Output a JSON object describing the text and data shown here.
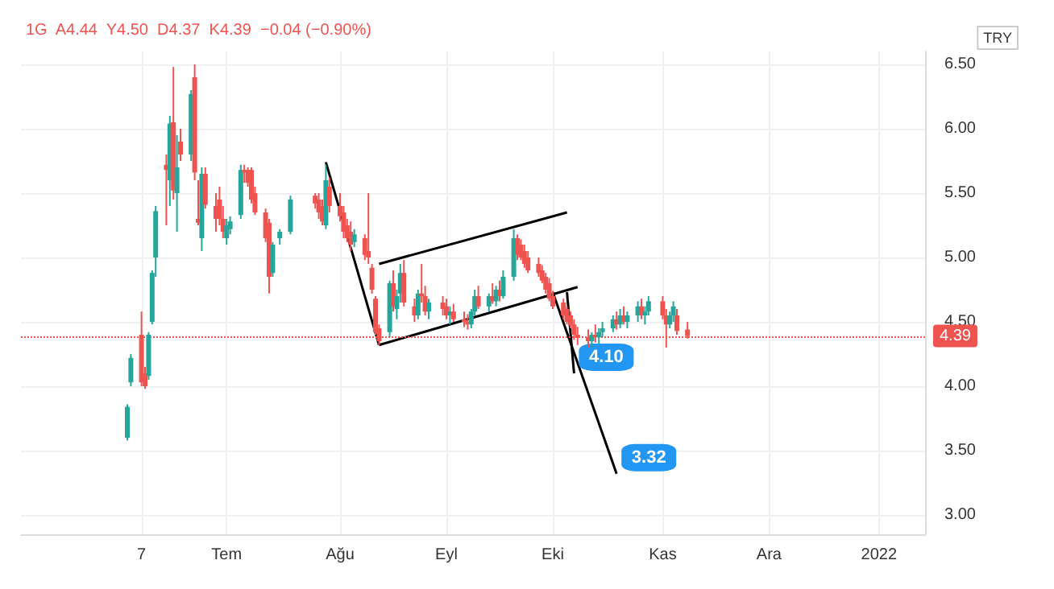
{
  "chart_data": {
    "type": "candlestick",
    "annotations": [
      "1G  A4.44  Y4.50  D4.37  K4.39  −0.04 (−0.90%)",
      "TRY",
      {
        "text": "4.10",
        "x": "2021-10-07",
        "y": 4.1
      },
      {
        "text": "3.32",
        "x": "2021-10-19",
        "y": 3.32
      }
    ],
    "x": [
      "2021-06-03",
      "2021-06-04",
      "2021-06-07",
      "2021-06-08",
      "2021-06-09",
      "2021-06-10",
      "2021-06-11",
      "2021-06-14",
      "2021-06-15",
      "2021-06-16",
      "2021-06-17",
      "2021-06-18",
      "2021-06-21",
      "2021-06-22",
      "2021-06-23",
      "2021-06-24",
      "2021-06-25",
      "2021-06-28",
      "2021-06-29",
      "2021-06-30",
      "2021-07-01",
      "2021-07-02",
      "2021-07-05",
      "2021-07-06",
      "2021-07-07",
      "2021-07-08",
      "2021-07-09",
      "2021-07-12",
      "2021-07-13",
      "2021-07-14",
      "2021-07-16",
      "2021-07-19",
      "2021-07-26",
      "2021-07-27",
      "2021-07-28",
      "2021-07-29",
      "2021-07-30",
      "2021-08-02",
      "2021-08-03",
      "2021-08-04",
      "2021-08-05",
      "2021-08-06",
      "2021-08-09",
      "2021-08-10",
      "2021-08-11",
      "2021-08-12",
      "2021-08-13",
      "2021-08-16",
      "2021-08-17",
      "2021-08-18",
      "2021-08-19",
      "2021-08-20",
      "2021-08-23",
      "2021-08-24",
      "2021-08-25",
      "2021-08-26",
      "2021-08-27",
      "2021-08-31",
      "2021-09-01",
      "2021-09-02",
      "2021-09-03",
      "2021-09-06",
      "2021-09-07",
      "2021-09-08",
      "2021-09-09",
      "2021-09-10",
      "2021-09-13",
      "2021-09-14",
      "2021-09-15",
      "2021-09-16",
      "2021-09-17",
      "2021-09-20",
      "2021-09-21",
      "2021-09-22",
      "2021-09-23",
      "2021-09-24",
      "2021-09-27",
      "2021-09-28",
      "2021-09-29",
      "2021-09-30",
      "2021-10-01",
      "2021-10-04",
      "2021-10-05",
      "2021-10-06",
      "2021-10-07",
      "2021-10-08",
      "2021-10-11",
      "2021-10-12",
      "2021-10-13",
      "2021-10-14",
      "2021-10-15",
      "2021-10-18",
      "2021-10-19",
      "2021-10-20",
      "2021-10-21",
      "2021-10-22",
      "2021-10-25",
      "2021-10-26",
      "2021-10-27",
      "2021-10-28",
      "2021-11-01",
      "2021-11-02",
      "2021-11-03",
      "2021-11-04",
      "2021-11-05",
      "2021-11-08"
    ],
    "ohlc": [
      [
        3.6,
        3.86,
        3.58,
        3.84
      ],
      [
        4.03,
        4.25,
        4.0,
        4.22
      ],
      [
        4.4,
        4.58,
        4.0,
        4.03
      ],
      [
        4.1,
        4.15,
        3.98,
        4.0
      ],
      [
        4.08,
        4.42,
        4.05,
        4.4
      ],
      [
        4.5,
        4.9,
        4.48,
        4.88
      ],
      [
        5.0,
        5.4,
        4.85,
        5.36
      ],
      [
        5.72,
        5.8,
        5.25,
        5.68
      ],
      [
        5.6,
        6.1,
        5.4,
        6.04
      ],
      [
        6.05,
        6.48,
        5.45,
        5.52
      ],
      [
        5.5,
        5.95,
        5.2,
        5.7
      ],
      [
        5.9,
        6.0,
        5.75,
        5.8
      ],
      [
        5.8,
        6.3,
        5.75,
        6.27
      ],
      [
        6.4,
        6.5,
        5.6,
        5.66
      ],
      [
        5.3,
        5.6,
        5.25,
        5.27
      ],
      [
        5.15,
        5.7,
        5.05,
        5.65
      ],
      [
        5.65,
        5.7,
        5.38,
        5.41
      ],
      [
        5.4,
        5.5,
        5.2,
        5.3
      ],
      [
        5.45,
        5.55,
        5.25,
        5.3
      ],
      [
        5.3,
        5.4,
        5.15,
        5.2
      ],
      [
        5.15,
        5.3,
        5.1,
        5.25
      ],
      [
        5.22,
        5.32,
        5.18,
        5.28
      ],
      [
        5.33,
        5.72,
        5.3,
        5.68
      ],
      [
        5.68,
        5.72,
        5.58,
        5.66
      ],
      [
        5.68,
        5.7,
        5.55,
        5.58
      ],
      [
        5.68,
        5.7,
        5.42,
        5.45
      ],
      [
        5.5,
        5.55,
        5.33,
        5.35
      ],
      [
        5.35,
        5.38,
        5.12,
        5.15
      ],
      [
        5.27,
        5.3,
        4.72,
        4.85
      ],
      [
        4.88,
        5.12,
        4.85,
        5.1
      ],
      [
        5.15,
        5.22,
        5.1,
        5.2
      ],
      [
        5.2,
        5.48,
        5.18,
        5.45
      ],
      [
        5.48,
        5.5,
        5.38,
        5.42
      ],
      [
        5.45,
        5.5,
        5.3,
        5.35
      ],
      [
        5.4,
        5.45,
        5.25,
        5.28
      ],
      [
        5.25,
        5.72,
        5.22,
        5.6
      ],
      [
        5.55,
        5.62,
        5.35,
        5.4
      ],
      [
        5.4,
        5.5,
        5.28,
        5.32
      ],
      [
        5.35,
        5.4,
        5.15,
        5.2
      ],
      [
        5.25,
        5.3,
        5.12,
        5.15
      ],
      [
        5.2,
        5.28,
        5.05,
        5.1
      ],
      [
        5.12,
        5.22,
        5.08,
        5.18
      ],
      [
        5.15,
        5.18,
        4.98,
        5.02
      ],
      [
        5.05,
        5.5,
        4.95,
        5.0
      ],
      [
        4.92,
        4.95,
        4.72,
        4.75
      ],
      [
        4.68,
        4.7,
        4.4,
        4.42
      ],
      [
        4.45,
        4.48,
        4.32,
        4.35
      ],
      [
        4.42,
        4.82,
        4.38,
        4.8
      ],
      [
        4.8,
        4.9,
        4.58,
        4.62
      ],
      [
        4.6,
        4.75,
        4.52,
        4.7
      ],
      [
        4.72,
        4.95,
        4.65,
        4.88
      ],
      [
        4.88,
        4.98,
        4.62,
        4.65
      ],
      [
        4.62,
        4.68,
        4.5,
        4.55
      ],
      [
        4.55,
        4.75,
        4.52,
        4.72
      ],
      [
        4.72,
        4.95,
        4.65,
        4.7
      ],
      [
        4.7,
        4.78,
        4.55,
        4.58
      ],
      [
        4.58,
        4.68,
        4.52,
        4.65
      ],
      [
        4.65,
        4.7,
        4.55,
        4.6
      ],
      [
        4.62,
        4.68,
        4.52,
        4.55
      ],
      [
        4.55,
        4.62,
        4.48,
        4.58
      ],
      [
        4.58,
        4.64,
        4.5,
        4.52
      ],
      [
        4.52,
        4.58,
        4.46,
        4.5
      ],
      [
        4.5,
        4.56,
        4.44,
        4.48
      ],
      [
        4.48,
        4.6,
        4.45,
        4.58
      ],
      [
        4.58,
        4.75,
        4.55,
        4.7
      ],
      [
        4.7,
        4.78,
        4.6,
        4.62
      ],
      [
        4.62,
        4.72,
        4.58,
        4.7
      ],
      [
        4.7,
        4.8,
        4.64,
        4.66
      ],
      [
        4.66,
        4.78,
        4.62,
        4.75
      ],
      [
        4.75,
        4.82,
        4.66,
        4.7
      ],
      [
        4.7,
        4.9,
        4.68,
        4.85
      ],
      [
        4.85,
        5.22,
        4.82,
        5.15
      ],
      [
        5.15,
        5.18,
        4.98,
        5.02
      ],
      [
        5.1,
        5.14,
        4.98,
        5.0
      ],
      [
        5.05,
        5.1,
        4.92,
        4.95
      ],
      [
        5.0,
        5.05,
        4.88,
        4.9
      ],
      [
        4.95,
        5.0,
        4.85,
        4.88
      ],
      [
        4.9,
        4.94,
        4.8,
        4.82
      ],
      [
        4.85,
        4.88,
        4.72,
        4.75
      ],
      [
        4.8,
        4.84,
        4.66,
        4.68
      ],
      [
        4.7,
        4.74,
        4.6,
        4.62
      ],
      [
        4.65,
        4.68,
        4.52,
        4.55
      ],
      [
        4.6,
        4.62,
        4.48,
        4.5
      ],
      [
        4.55,
        4.58,
        4.45,
        4.47
      ],
      [
        4.48,
        4.52,
        4.36,
        4.4
      ],
      [
        4.4,
        4.46,
        4.32,
        4.38
      ],
      [
        4.38,
        4.44,
        4.3,
        4.35
      ],
      [
        4.35,
        4.42,
        4.3,
        4.4
      ],
      [
        4.4,
        4.48,
        4.34,
        4.38
      ],
      [
        4.38,
        4.45,
        4.33,
        4.42
      ],
      [
        4.42,
        4.5,
        4.38,
        4.45
      ],
      [
        4.45,
        4.55,
        4.42,
        4.52
      ],
      [
        4.52,
        4.58,
        4.44,
        4.48
      ],
      [
        4.48,
        4.6,
        4.45,
        4.55
      ],
      [
        4.55,
        4.62,
        4.48,
        4.5
      ],
      [
        4.5,
        4.58,
        4.45,
        4.55
      ],
      [
        4.55,
        4.66,
        4.5,
        4.62
      ],
      [
        4.62,
        4.68,
        4.52,
        4.55
      ],
      [
        4.55,
        4.62,
        4.48,
        4.58
      ],
      [
        4.58,
        4.7,
        4.55,
        4.66
      ],
      [
        4.66,
        4.7,
        4.52,
        4.55
      ],
      [
        4.55,
        4.6,
        4.3,
        4.48
      ],
      [
        4.48,
        4.58,
        4.45,
        4.55
      ],
      [
        4.55,
        4.66,
        4.5,
        4.62
      ],
      [
        4.55,
        4.6,
        4.4,
        4.43
      ],
      [
        4.44,
        4.5,
        4.37,
        4.39
      ]
    ],
    "colors": [
      "#26a69a",
      "#26a69a",
      "#ef5350",
      "#ef5350",
      "#26a69a",
      "#26a69a",
      "#26a69a",
      "#ef5350",
      "#26a69a",
      "#ef5350",
      "#26a69a",
      "#ef5350",
      "#26a69a",
      "#ef5350",
      "#ef5350",
      "#26a69a",
      "#ef5350",
      "#ef5350",
      "#ef5350",
      "#ef5350",
      "#26a69a",
      "#26a69a",
      "#26a69a",
      "#ef5350",
      "#ef5350",
      "#ef5350",
      "#ef5350",
      "#ef5350",
      "#ef5350",
      "#26a69a",
      "#26a69a",
      "#26a69a",
      "#ef5350",
      "#ef5350",
      "#ef5350",
      "#26a69a",
      "#ef5350",
      "#ef5350",
      "#ef5350",
      "#ef5350",
      "#ef5350",
      "#26a69a",
      "#ef5350",
      "#ef5350",
      "#ef5350",
      "#ef5350",
      "#ef5350",
      "#26a69a",
      "#ef5350",
      "#26a69a",
      "#26a69a",
      "#ef5350",
      "#ef5350",
      "#26a69a",
      "#ef5350",
      "#ef5350",
      "#26a69a",
      "#ef5350",
      "#ef5350",
      "#26a69a",
      "#ef5350",
      "#ef5350",
      "#ef5350",
      "#26a69a",
      "#26a69a",
      "#ef5350",
      "#26a69a",
      "#ef5350",
      "#26a69a",
      "#ef5350",
      "#26a69a",
      "#26a69a",
      "#ef5350",
      "#ef5350",
      "#ef5350",
      "#ef5350",
      "#ef5350",
      "#ef5350",
      "#ef5350",
      "#ef5350",
      "#ef5350",
      "#ef5350",
      "#ef5350",
      "#ef5350",
      "#ef5350",
      "#ef5350",
      "#ef5350",
      "#26a69a",
      "#ef5350",
      "#26a69a",
      "#26a69a",
      "#26a69a",
      "#ef5350",
      "#26a69a",
      "#ef5350",
      "#26a69a",
      "#26a69a",
      "#ef5350",
      "#26a69a",
      "#26a69a",
      "#ef5350",
      "#ef5350",
      "#26a69a",
      "#26a69a",
      "#ef5350",
      "#ef5350"
    ],
    "series": [
      {
        "type": "line",
        "color": "#000000",
        "x": [
          "2021-07-29",
          "2021-08-13"
        ],
        "values": [
          5.74,
          4.32
        ]
      },
      {
        "type": "line",
        "color": "#000000",
        "x": [
          "2021-08-13",
          "2021-10-05"
        ],
        "values": [
          4.95,
          5.35
        ]
      },
      {
        "type": "line",
        "color": "#000000",
        "x": [
          "2021-08-13",
          "2021-10-08"
        ],
        "values": [
          4.32,
          4.77
        ]
      },
      {
        "type": "line",
        "color": "#000000",
        "x": [
          "2021-10-05",
          "2021-10-07"
        ],
        "values": [
          4.73,
          4.1
        ]
      },
      {
        "type": "line",
        "color": "#000000",
        "x": [
          "2021-10-01",
          "2021-10-19"
        ],
        "values": [
          4.73,
          3.32
        ]
      }
    ],
    "xlim": [
      "2021-05-04",
      "2022-01-14"
    ],
    "xticks": [
      {
        "value": "2021-06-07",
        "label": "7"
      },
      {
        "value": "2021-07-01",
        "label": "Tem"
      },
      {
        "value": "2021-08-02",
        "label": "Ağu"
      },
      {
        "value": "2021-09-01",
        "label": "Eyl"
      },
      {
        "value": "2021-10-01",
        "label": "Eki"
      },
      {
        "value": "2021-11-01",
        "label": "Kas"
      },
      {
        "value": "2021-12-01",
        "label": "Ara"
      },
      {
        "value": "2022-01-01",
        "label": "2022"
      }
    ],
    "ylim": [
      2.85,
      6.6
    ],
    "yticks": [
      {
        "value": 3,
        "label": "3.00"
      },
      {
        "value": 3.5,
        "label": "3.50"
      },
      {
        "value": 4,
        "label": "4.00"
      },
      {
        "value": 4.5,
        "label": "4.50"
      },
      {
        "value": 5,
        "label": "5.00"
      },
      {
        "value": 5.5,
        "label": "5.50"
      },
      {
        "value": 6,
        "label": "6.00"
      },
      {
        "value": 6.5,
        "label": "6.50"
      }
    ],
    "grid": true,
    "ref_lines": [
      {
        "axis": "y",
        "value": 4.39,
        "label": "4.39",
        "color": "#ef5350",
        "line_style": "dotted"
      }
    ]
  }
}
